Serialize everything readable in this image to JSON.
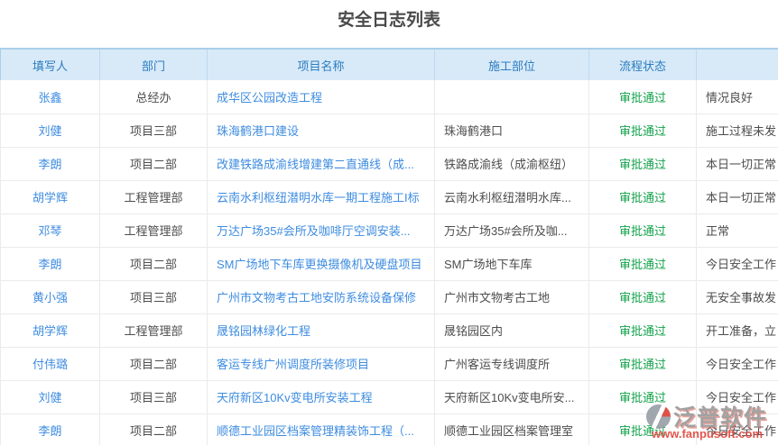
{
  "page_title": "安全日志列表",
  "colors": {
    "header_bg": "#d8eaf8",
    "header_text": "#2b7cc1",
    "header_top_border": "#a9cfe9",
    "link_blue": "#3e8ce0",
    "status_green": "#12a24a",
    "body_text": "#4d4d4d"
  },
  "table": {
    "columns": [
      {
        "label": "填写人"
      },
      {
        "label": "部门"
      },
      {
        "label": "项目名称"
      },
      {
        "label": "施工部位"
      },
      {
        "label": "流程状态"
      },
      {
        "label": ""
      }
    ],
    "rows": [
      {
        "filler": "张鑫",
        "dept": "总经办",
        "project": "成华区公园改造工程",
        "location": "",
        "status": "审批通过",
        "note": "情况良好"
      },
      {
        "filler": "刘健",
        "dept": "项目三部",
        "project": "珠海鹤港口建设",
        "location": "珠海鹤港口",
        "status": "审批通过",
        "note": "施工过程未发"
      },
      {
        "filler": "李朗",
        "dept": "项目二部",
        "project": "改建铁路成渝线增建第二直通线（成...",
        "location": "铁路成渝线（成渝枢纽）",
        "status": "审批通过",
        "note": "本日一切正常"
      },
      {
        "filler": "胡学辉",
        "dept": "工程管理部",
        "project": "云南水利枢纽潜明水库一期工程施工I标",
        "location": "云南水利枢纽潜明水库...",
        "status": "审批通过",
        "note": "本日一切正常"
      },
      {
        "filler": "邓琴",
        "dept": "工程管理部",
        "project": "万达广场35#会所及咖啡厅空调安装...",
        "location": "万达广场35#会所及咖...",
        "status": "审批通过",
        "note": "正常"
      },
      {
        "filler": "李朗",
        "dept": "项目二部",
        "project": "SM广场地下车库更换摄像机及硬盘项目",
        "location": "SM广场地下车库",
        "status": "审批通过",
        "note": "今日安全工作"
      },
      {
        "filler": "黄小强",
        "dept": "项目三部",
        "project": "广州市文物考古工地安防系统设备保修",
        "location": "广州市文物考古工地",
        "status": "审批通过",
        "note": "无安全事故发"
      },
      {
        "filler": "胡学辉",
        "dept": "工程管理部",
        "project": "晟铭园林绿化工程",
        "location": "晟铭园区内",
        "status": "审批通过",
        "note": "开工准备，立"
      },
      {
        "filler": "付伟璐",
        "dept": "项目二部",
        "project": "客运专线广州调度所装修项目",
        "location": "广州客运专线调度所",
        "status": "审批通过",
        "note": "今日安全工作"
      },
      {
        "filler": "刘健",
        "dept": "项目三部",
        "project": "天府新区10Kv变电所安装工程",
        "location": "天府新区10Kv变电所安...",
        "status": "审批通过",
        "note": "今日安全工作"
      },
      {
        "filler": "李朗",
        "dept": "项目二部",
        "project": "顺德工业园区档案管理精装饰工程（...",
        "location": "顺德工业园区档案管理室",
        "status": "审批通过",
        "note": "今日安全工作"
      }
    ]
  },
  "watermark": {
    "brand": "泛普软件",
    "url": "www.fanpusoft.com"
  }
}
